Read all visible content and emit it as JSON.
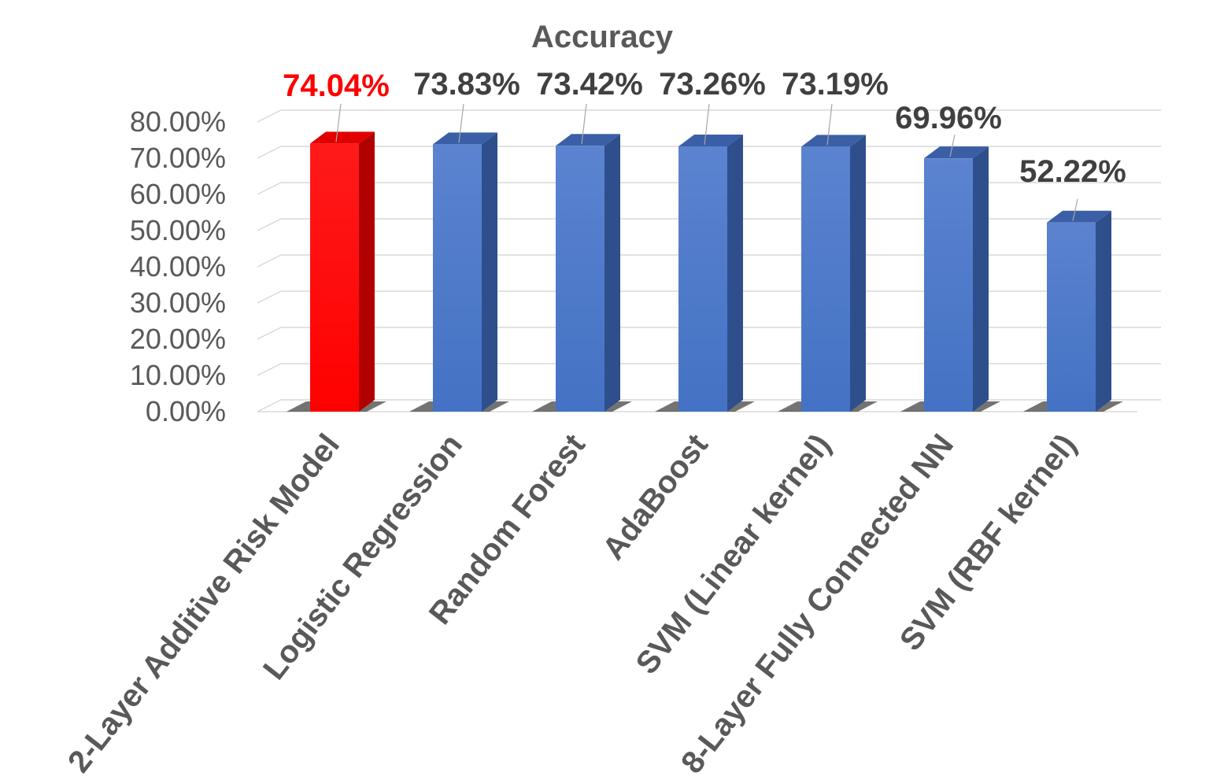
{
  "chart_data": {
    "type": "bar",
    "title": "Accuracy",
    "categories": [
      "2-Layer Additive Risk Model",
      "Logistic Regression",
      "Random Forest",
      "AdaBoost",
      "SVM (Linear kernel)",
      "8-Layer Fully Connected NN",
      "SVM (RBF kernel)"
    ],
    "values": [
      74.04,
      73.83,
      73.42,
      73.26,
      73.19,
      69.96,
      52.22
    ],
    "data_labels": [
      "74.04%",
      "73.83%",
      "73.42%",
      "73.26%",
      "73.19%",
      "69.96%",
      "52.22%"
    ],
    "ylim": [
      0,
      80
    ],
    "yticks": [
      "0.00%",
      "10.00%",
      "20.00%",
      "30.00%",
      "40.00%",
      "50.00%",
      "60.00%",
      "70.00%",
      "80.00%"
    ],
    "xlabel": "",
    "ylabel": "",
    "grid": true,
    "legend": "none",
    "colors": {
      "highlight": "#ff0000",
      "highlight_side": "#b00000",
      "highlight_top": "#e00000",
      "bar": "#4472c4",
      "bar_side": "#2f4f8c",
      "bar_top": "#3a5fa6",
      "highlight_label": "#ff0000",
      "label": "#404040"
    },
    "highlight_index": 0
  }
}
